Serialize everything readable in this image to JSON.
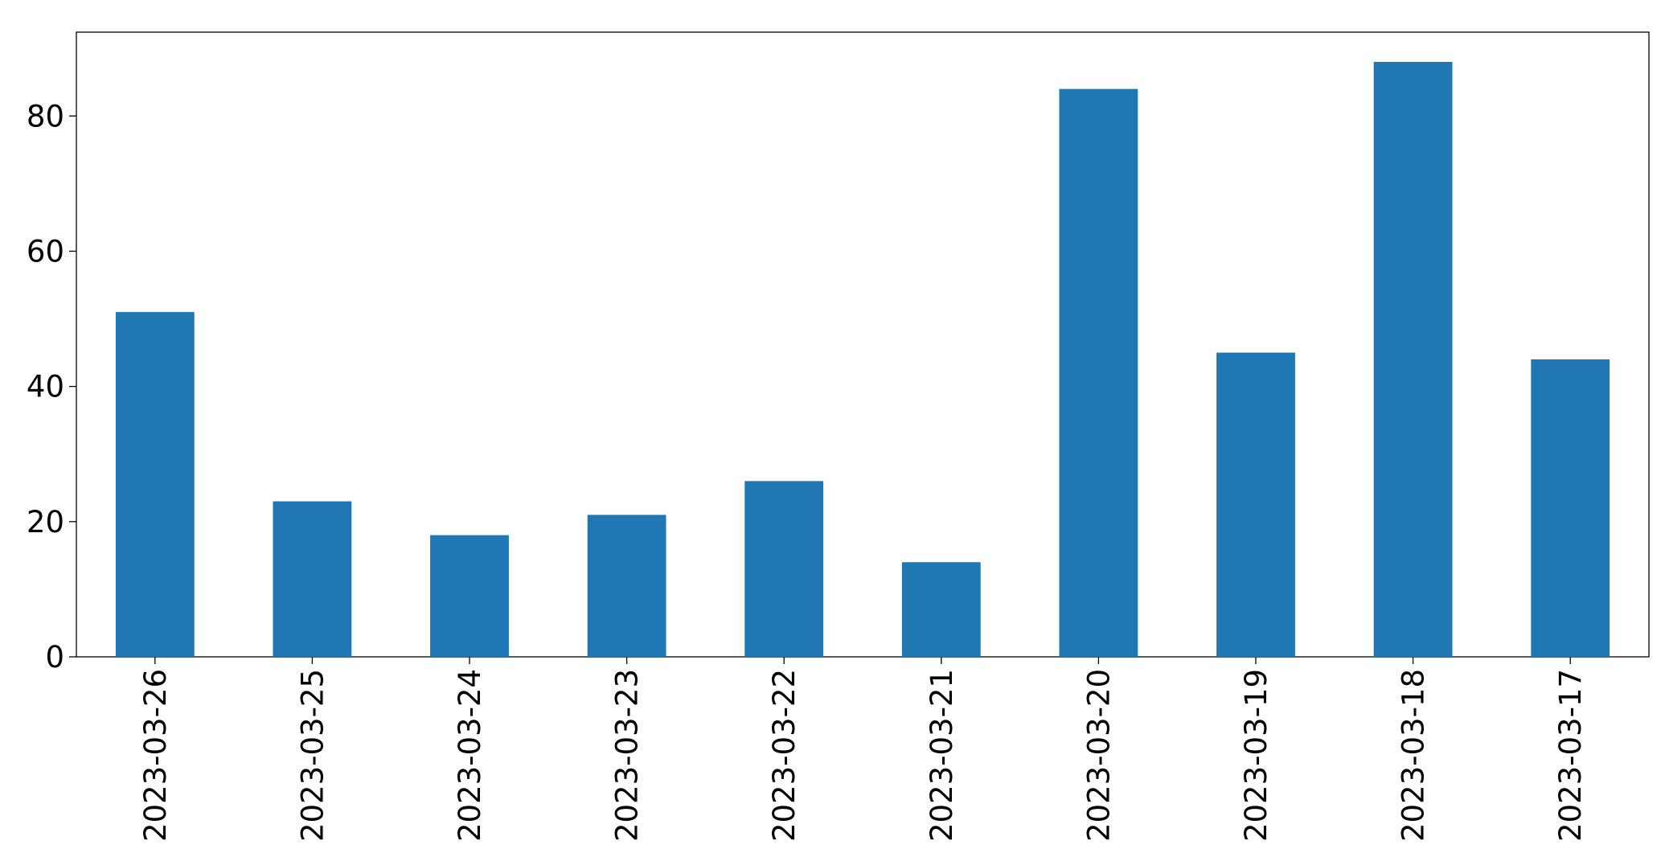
{
  "chart_data": {
    "type": "bar",
    "categories": [
      "2023-03-26",
      "2023-03-25",
      "2023-03-24",
      "2023-03-23",
      "2023-03-22",
      "2023-03-21",
      "2023-03-20",
      "2023-03-19",
      "2023-03-18",
      "2023-03-17"
    ],
    "values": [
      51,
      23,
      18,
      21,
      26,
      14,
      84,
      45,
      88,
      44
    ],
    "color": "#1f77b4",
    "ylim": [
      0,
      92.4
    ],
    "yticks": [
      0,
      20,
      40,
      60,
      80
    ],
    "grid": false
  }
}
